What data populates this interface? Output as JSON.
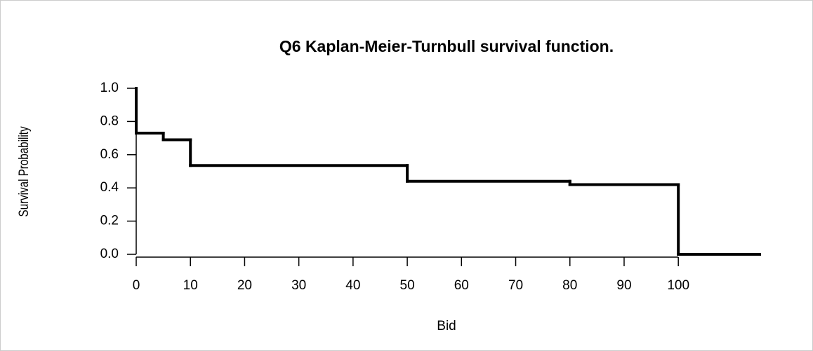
{
  "chart_data": {
    "type": "step",
    "title": "Q6 Kaplan-Meier-Turnbull survival function.",
    "xlabel": "Bid",
    "ylabel": "Survival Probability",
    "x": [
      0,
      0,
      5,
      10,
      50,
      80,
      100
    ],
    "values": [
      1.0,
      0.73,
      0.69,
      0.535,
      0.44,
      0.42,
      0
    ],
    "color": "#000000",
    "xlim": [
      0,
      115
    ],
    "xticks": [
      0,
      10,
      20,
      30,
      40,
      50,
      60,
      70,
      80,
      90,
      100
    ],
    "ylim": [
      0,
      1
    ],
    "yticks": [
      {
        "value": 0,
        "label": "0.0"
      },
      {
        "value": 0.2,
        "label": "0.2"
      },
      {
        "value": 0.4,
        "label": "0.4"
      },
      {
        "value": 0.6,
        "label": "0.6"
      },
      {
        "value": 0.8,
        "label": "0.8"
      },
      {
        "value": 1,
        "label": "1.0"
      }
    ]
  }
}
